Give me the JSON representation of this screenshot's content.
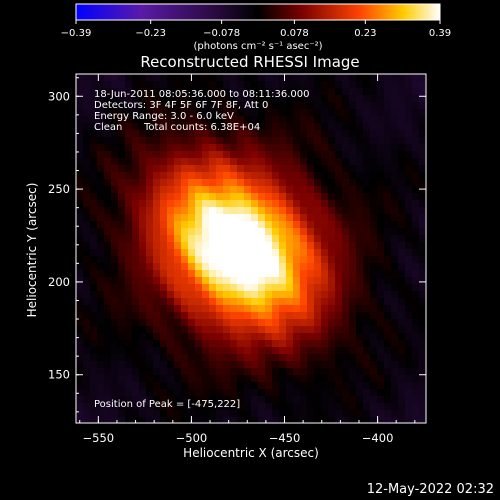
{
  "chart_data": {
    "type": "heatmap",
    "title": "Reconstructed RHESSI Image",
    "xlabel": "Heliocentric X (arcsec)",
    "ylabel": "Heliocentric Y (arcsec)",
    "xlim": [
      -562,
      -374
    ],
    "ylim": [
      124,
      312
    ],
    "x_ticks": [
      -550,
      -500,
      -450,
      -400
    ],
    "y_ticks": [
      150,
      200,
      250,
      300
    ],
    "colorbar": {
      "range": [
        -0.39,
        0.39
      ],
      "ticks": [
        -0.39,
        -0.23,
        -0.078,
        0.078,
        0.23,
        0.39
      ],
      "tick_labels": [
        "-0.39",
        "-0.23",
        "-0.078",
        "0.078",
        "0.23",
        "0.39"
      ],
      "units": "(photons cm⁻² s⁻¹ asec⁻²)",
      "colormap": "hot-diverging (blue-purple-black-red-yellow-white)"
    },
    "annotations": {
      "time_range": "18-Jun-2011 08:05:36.000 to 08:11:36.000",
      "detectors": "Detectors: 3F 4F 5F 6F 7F 8F, Att 0",
      "energy": "Energy Range: 3.0 - 6.0 keV",
      "method": "Clean",
      "total_counts": "Total counts: 6.38E+04",
      "peak": "Position of Peak = [-475,222]"
    },
    "source": {
      "peak_x": -475,
      "peak_y": 222,
      "peak_value": 0.39,
      "background_value": -0.05
    }
  },
  "footer": {
    "timestamp": "12-May-2022 02:32"
  }
}
